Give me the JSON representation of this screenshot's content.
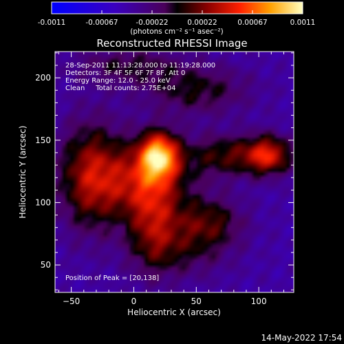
{
  "chart_data": {
    "type": "heatmap",
    "title": "Reconstructed RHESSI Image",
    "xlabel": "Heliocentric X (arcsec)",
    "ylabel": "Heliocentric Y (arcsec)",
    "xlim": [
      -63,
      128
    ],
    "ylim": [
      28,
      221
    ],
    "xticks": [
      -50,
      0,
      50,
      100
    ],
    "yticks": [
      50,
      100,
      150,
      200
    ],
    "colorbar": {
      "range": [
        -0.0011,
        0.0011
      ],
      "ticks": [
        "-0.0011",
        "-0.00067",
        "-0.00022",
        "0.00022",
        "0.00067",
        "0.0011"
      ],
      "unit_label": "(photons cm⁻² s⁻¹ asec⁻²)"
    },
    "annotations": [
      "28-Sep-2011 11:13:28.000 to 11:19:28.000",
      "Detectors: 3F 4F 5F 6F 7F 8F, Att 0",
      "Energy Range: 12.0 - 25.0 keV",
      "Clean     Total counts: 2.75E+04"
    ],
    "peak_label": "Position of Peak = [20,138]",
    "peak": [
      20,
      138
    ],
    "sources": [
      {
        "x": 20,
        "y": 138,
        "amp": 1.0,
        "sx": 11,
        "sy": 13
      },
      {
        "x": 5,
        "y": 118,
        "amp": 0.55,
        "sx": 30,
        "sy": 22
      },
      {
        "x": -35,
        "y": 122,
        "amp": 0.55,
        "sx": 18,
        "sy": 32
      },
      {
        "x": 108,
        "y": 138,
        "amp": 0.72,
        "sx": 13,
        "sy": 11
      },
      {
        "x": 75,
        "y": 138,
        "amp": 0.45,
        "sx": 22,
        "sy": 12
      },
      {
        "x": 15,
        "y": 85,
        "amp": 0.48,
        "sx": 14,
        "sy": 28
      },
      {
        "x": 60,
        "y": 85,
        "amp": 0.42,
        "sx": 20,
        "sy": 14
      },
      {
        "x": 50,
        "y": 190,
        "amp": 0.38,
        "sx": 30,
        "sy": 14
      },
      {
        "x": -5,
        "y": 210,
        "amp": 0.32,
        "sx": 30,
        "sy": 10
      },
      {
        "x": 40,
        "y": 62,
        "amp": 0.3,
        "sx": 26,
        "sy": 16
      }
    ],
    "background": -0.38
  },
  "footer": {
    "date": "14-May-2022 17:54"
  }
}
